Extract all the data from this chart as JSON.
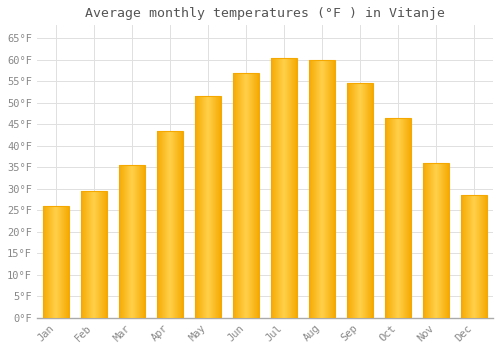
{
  "title": "Average monthly temperatures (°F ) in Vitanje",
  "months": [
    "Jan",
    "Feb",
    "Mar",
    "Apr",
    "May",
    "Jun",
    "Jul",
    "Aug",
    "Sep",
    "Oct",
    "Nov",
    "Dec"
  ],
  "values": [
    26,
    29.5,
    35.5,
    43.5,
    51.5,
    57,
    60.5,
    60,
    54.5,
    46.5,
    36,
    28.5
  ],
  "bar_color_center": "#FFD04A",
  "bar_color_edge": "#F5A800",
  "background_color": "#FFFFFF",
  "grid_color": "#E0E0E0",
  "text_color": "#888888",
  "title_color": "#555555",
  "ylim": [
    0,
    68
  ],
  "yticks": [
    0,
    5,
    10,
    15,
    20,
    25,
    30,
    35,
    40,
    45,
    50,
    55,
    60,
    65
  ],
  "title_fontsize": 9.5,
  "tick_fontsize": 7.5,
  "bar_width": 0.7
}
